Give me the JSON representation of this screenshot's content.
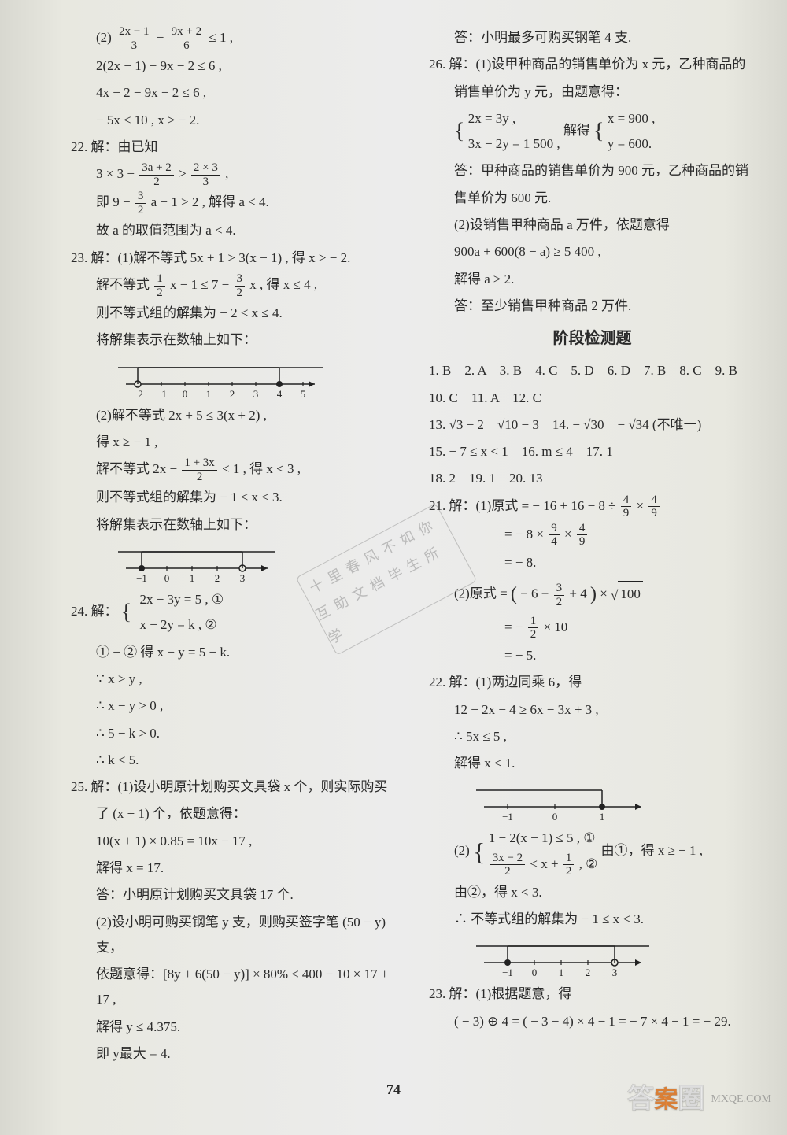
{
  "page_number": "74",
  "stamp": {
    "line1": "十里春风不如你",
    "line2": "互助文档毕生所学"
  },
  "watermark": {
    "logo_a": "答",
    "logo_b": "案",
    "logo_c": "圈",
    "url": "MXQE.COM"
  },
  "left": {
    "l01": "(2)",
    "l02": "2(2x − 1) − 9x − 2 ≤ 6 ,",
    "l03": "4x − 2 − 9x − 2 ≤ 6 ,",
    "l04": "− 5x ≤ 10 , x ≥ − 2.",
    "l05": "22. 解：由已知",
    "l06a": "3 × 3 −",
    "l06b": " > ",
    "l07a": "即 9 − ",
    "l07b": "a − 1 > 2 , 解得 a < 4.",
    "l08": "故 a 的取值范围为 a < 4.",
    "l09": "23. 解：(1)解不等式 5x + 1 > 3(x − 1) , 得 x > − 2.",
    "l10a": "解不等式",
    "l10b": "x − 1 ≤ 7 − ",
    "l10c": "x , 得 x ≤ 4 ,",
    "l11": "则不等式组的解集为 − 2 < x ≤ 4.",
    "l12": "将解集表示在数轴上如下：",
    "nl1": {
      "ticks": [
        "−2",
        "−1",
        "0",
        "1",
        "2",
        "3",
        "4",
        "5"
      ],
      "open_at": -2,
      "closed_at": 4
    },
    "l13": "(2)解不等式 2x + 5 ≤ 3(x + 2) ,",
    "l14": "得 x ≥ − 1 ,",
    "l15a": "解不等式 2x − ",
    "l15b": " < 1 , 得 x < 3 ,",
    "l16": "则不等式组的解集为 − 1 ≤ x < 3.",
    "l17": "将解集表示在数轴上如下：",
    "nl2": {
      "ticks": [
        "−1",
        "0",
        "1",
        "2",
        "3"
      ],
      "closed_at": -1,
      "open_at": 3
    },
    "l18a": "24. 解：",
    "l18b": "2x − 3y = 5 ,  ①",
    "l18c": "x − 2y = k ,   ②",
    "l19": "① − ② 得 x − y = 5 − k.",
    "l20": "∵ x > y ,",
    "l21": "∴ x − y > 0 ,",
    "l22": "∴ 5 − k > 0.",
    "l23": "∴ k < 5.",
    "l24": "25. 解：(1)设小明原计划购买文具袋 x 个，则实际购买",
    "l25": "了 (x + 1) 个，依题意得：",
    "l26": "10(x + 1) × 0.85 = 10x − 17 ,",
    "l27": "解得 x = 17.",
    "l28": "答：小明原计划购买文具袋 17 个.",
    "l29": "(2)设小明可购买钢笔 y 支，则购买签字笔 (50 − y) 支，",
    "l30": "依题意得：[8y + 6(50 − y)] × 80% ≤ 400 − 10 × 17 + 17 ,",
    "l31": "解得 y ≤ 4.375.",
    "l32": "即 y最大 = 4."
  },
  "right": {
    "r01": "答：小明最多可购买钢笔 4 支.",
    "r02": "26. 解：(1)设甲种商品的销售单价为 x 元，乙种商品的",
    "r03": "销售单价为 y 元，由题意得：",
    "r04a": "2x = 3y ,",
    "r04b": "3x − 2y = 1 500 ,",
    "r04c": "解得",
    "r04d": "x = 900 ,",
    "r04e": "y = 600.",
    "r05": "答：甲种商品的销售单价为 900 元，乙种商品的销",
    "r06": "售单价为 600 元.",
    "r07": "(2)设销售甲种商品 a 万件，依题意得",
    "r08": "900a + 600(8 − a) ≥ 5 400 ,",
    "r09": "解得 a ≥ 2.",
    "r10": "答：至少销售甲种商品 2 万件.",
    "title": "阶段检测题",
    "r11": "1. B　2. A　3. B　4. C　5. D　6. D　7. B　8. C　9. B",
    "r12": "10. C　11. A　12. C",
    "r13": "13. √3 − 2　√10 − 3　14. − √30　− √34 (不唯一)",
    "r14": "15. − 7 ≤ x < 1　16. m ≤ 4　17. 1",
    "r15": "18. 2　19. 1　20. 13",
    "r16a": "21. 解：(1)原式 = − 16 + 16 − 8 ÷ ",
    "r16b": " × ",
    "r17a": "= − 8 × ",
    "r17b": " × ",
    "r18": "= − 8.",
    "r19a": "(2)原式 = ",
    "r19b": "− 6 + ",
    "r19c": " + 4",
    "r19d": " × ",
    "r20a": "= − ",
    "r20b": " × 10",
    "r21": "= − 5.",
    "r22": "22. 解：(1)两边同乘 6，得",
    "r23": "12 − 2x − 4 ≥ 6x − 3x + 3 ,",
    "r24": "∴ 5x ≤ 5 ,",
    "r25": "解得 x ≤ 1.",
    "nl3": {
      "ticks": [
        "−1",
        "0",
        "1"
      ],
      "closed_at": 1,
      "dir": "left"
    },
    "r26a": "(2)",
    "r26b": "1 − 2(x − 1) ≤ 5 ,  ①",
    "r26d": " < x + ",
    "r26e": " ,  ②",
    "r26f": "由①，得 x ≥ − 1 ,",
    "r27": "由②，得 x < 3.",
    "r28": "∴ 不等式组的解集为 − 1 ≤ x < 3.",
    "nl4": {
      "ticks": [
        "−1",
        "0",
        "1",
        "2",
        "3"
      ],
      "closed_at": -1,
      "open_at": 3
    },
    "r29": "23. 解：(1)根据题意，得",
    "r30": "( − 3) ⊕ 4 = ( − 3 − 4) × 4 − 1 = − 7 × 4 − 1 = − 29."
  },
  "fracs": {
    "f1": {
      "num": "2x − 1",
      "den": "3"
    },
    "f2": {
      "num": "9x + 2",
      "den": "6"
    },
    "f3": {
      "num": "3a + 2",
      "den": "2"
    },
    "f4": {
      "num": "2 × 3",
      "den": "3"
    },
    "f5": {
      "num": "3",
      "den": "2"
    },
    "f6": {
      "num": "1",
      "den": "2"
    },
    "f7": {
      "num": "3",
      "den": "2"
    },
    "f8": {
      "num": "1 + 3x",
      "den": "2"
    },
    "f9": {
      "num": "4",
      "den": "9"
    },
    "f10": {
      "num": "4",
      "den": "9"
    },
    "f11": {
      "num": "9",
      "den": "4"
    },
    "f12": {
      "num": "4",
      "den": "9"
    },
    "f13": {
      "num": "3",
      "den": "2"
    },
    "f14": {
      "num": "1",
      "den": "2"
    },
    "f15": {
      "num": "3x − 2",
      "den": "2"
    },
    "f16": {
      "num": "1",
      "den": "2"
    }
  },
  "colors": {
    "text": "#2a2a2a",
    "bg": "#e8e8e0",
    "axis": "#222222"
  }
}
